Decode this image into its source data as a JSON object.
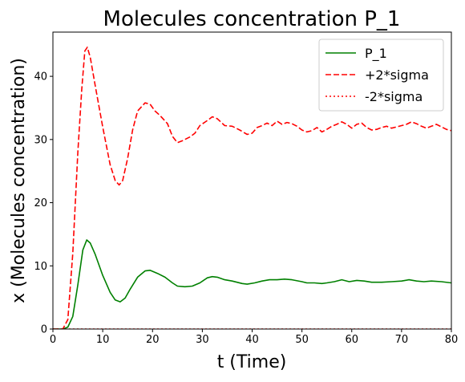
{
  "chart_data": {
    "type": "line",
    "title": "Molecules concentration P_1",
    "xlabel": "t (Time)",
    "ylabel": "x (Molecules concentration)",
    "xlim": [
      0,
      80
    ],
    "ylim": [
      0,
      47
    ],
    "xticks": [
      0,
      10,
      20,
      30,
      40,
      50,
      60,
      70,
      80
    ],
    "yticks": [
      0,
      10,
      20,
      30,
      40
    ],
    "grid": false,
    "legend_position": "top-right",
    "series": [
      {
        "name": "P_1",
        "color": "#008000",
        "style": "solid",
        "points": [
          [
            0,
            0
          ],
          [
            2,
            0
          ],
          [
            3,
            0.3
          ],
          [
            4,
            2
          ],
          [
            5,
            7
          ],
          [
            6,
            12.5
          ],
          [
            6.8,
            14.1
          ],
          [
            7.5,
            13.6
          ],
          [
            8.5,
            11.8
          ],
          [
            10,
            8.5
          ],
          [
            11.5,
            5.8
          ],
          [
            12.5,
            4.6
          ],
          [
            13.5,
            4.3
          ],
          [
            14.5,
            4.9
          ],
          [
            15.5,
            6.3
          ],
          [
            17,
            8.2
          ],
          [
            18.5,
            9.2
          ],
          [
            19.5,
            9.3
          ],
          [
            21,
            8.8
          ],
          [
            22.5,
            8.2
          ],
          [
            24,
            7.3
          ],
          [
            25,
            6.8
          ],
          [
            26.5,
            6.7
          ],
          [
            28,
            6.8
          ],
          [
            29.5,
            7.3
          ],
          [
            31,
            8.1
          ],
          [
            32,
            8.3
          ],
          [
            33,
            8.2
          ],
          [
            34.5,
            7.8
          ],
          [
            36,
            7.6
          ],
          [
            38,
            7.2
          ],
          [
            39,
            7.1
          ],
          [
            40.5,
            7.3
          ],
          [
            42,
            7.6
          ],
          [
            43.5,
            7.8
          ],
          [
            45,
            7.8
          ],
          [
            46.5,
            7.9
          ],
          [
            48,
            7.8
          ],
          [
            50,
            7.5
          ],
          [
            51,
            7.3
          ],
          [
            52.5,
            7.3
          ],
          [
            54,
            7.2
          ],
          [
            55,
            7.3
          ],
          [
            56.5,
            7.5
          ],
          [
            58,
            7.8
          ],
          [
            59.5,
            7.5
          ],
          [
            61,
            7.7
          ],
          [
            62.5,
            7.6
          ],
          [
            64,
            7.4
          ],
          [
            66,
            7.4
          ],
          [
            68,
            7.5
          ],
          [
            70,
            7.6
          ],
          [
            71.5,
            7.8
          ],
          [
            73,
            7.6
          ],
          [
            74.5,
            7.5
          ],
          [
            76,
            7.6
          ],
          [
            78,
            7.5
          ],
          [
            80,
            7.3
          ]
        ]
      },
      {
        "name": "+2*sigma",
        "color": "#ff0000",
        "style": "dashed",
        "points": [
          [
            0,
            0
          ],
          [
            2,
            0
          ],
          [
            3,
            1.5
          ],
          [
            4,
            12
          ],
          [
            5,
            28
          ],
          [
            5.8,
            38
          ],
          [
            6.4,
            44
          ],
          [
            6.9,
            44.6
          ],
          [
            7.5,
            43
          ],
          [
            8.5,
            38.5
          ],
          [
            10,
            32
          ],
          [
            11.5,
            26
          ],
          [
            12.5,
            23.5
          ],
          [
            13.3,
            22.8
          ],
          [
            14,
            23.5
          ],
          [
            15,
            27
          ],
          [
            16,
            31.5
          ],
          [
            17,
            34.5
          ],
          [
            18.5,
            35.8
          ],
          [
            19.5,
            35.6
          ],
          [
            20.5,
            34.5
          ],
          [
            21.5,
            33.8
          ],
          [
            23,
            32.5
          ],
          [
            24,
            30.5
          ],
          [
            25,
            29.5
          ],
          [
            26,
            29.8
          ],
          [
            27.5,
            30.4
          ],
          [
            28.5,
            31
          ],
          [
            29.5,
            32.2
          ],
          [
            31,
            33
          ],
          [
            32,
            33.6
          ],
          [
            33,
            33.3
          ],
          [
            34.5,
            32.2
          ],
          [
            36,
            32.1
          ],
          [
            37.5,
            31.5
          ],
          [
            39,
            30.8
          ],
          [
            40,
            31
          ],
          [
            41,
            31.9
          ],
          [
            42,
            32.2
          ],
          [
            43,
            32.6
          ],
          [
            44,
            32.2
          ],
          [
            45,
            32.9
          ],
          [
            46,
            32.4
          ],
          [
            47,
            32.7
          ],
          [
            48,
            32.5
          ],
          [
            49,
            32.1
          ],
          [
            50,
            31.5
          ],
          [
            51,
            31.2
          ],
          [
            52,
            31.4
          ],
          [
            53,
            31.9
          ],
          [
            54,
            31.2
          ],
          [
            55,
            31.6
          ],
          [
            56,
            32.1
          ],
          [
            57,
            32.4
          ],
          [
            58,
            32.8
          ],
          [
            59,
            32.4
          ],
          [
            60,
            31.8
          ],
          [
            61,
            32.4
          ],
          [
            62,
            32.6
          ],
          [
            63,
            31.9
          ],
          [
            64,
            31.5
          ],
          [
            65,
            31.6
          ],
          [
            66,
            31.9
          ],
          [
            67,
            32.1
          ],
          [
            68,
            31.8
          ],
          [
            69,
            32
          ],
          [
            70,
            32.2
          ],
          [
            71,
            32.4
          ],
          [
            72,
            32.8
          ],
          [
            73,
            32.5
          ],
          [
            74,
            32.1
          ],
          [
            75,
            31.8
          ],
          [
            76,
            32.1
          ],
          [
            77,
            32.4
          ],
          [
            78,
            32
          ],
          [
            79,
            31.6
          ],
          [
            80,
            31.4
          ]
        ]
      },
      {
        "name": "-2*sigma",
        "color": "#ff0000",
        "style": "dotted",
        "points": [
          [
            0,
            0
          ],
          [
            80,
            0
          ]
        ]
      }
    ]
  }
}
